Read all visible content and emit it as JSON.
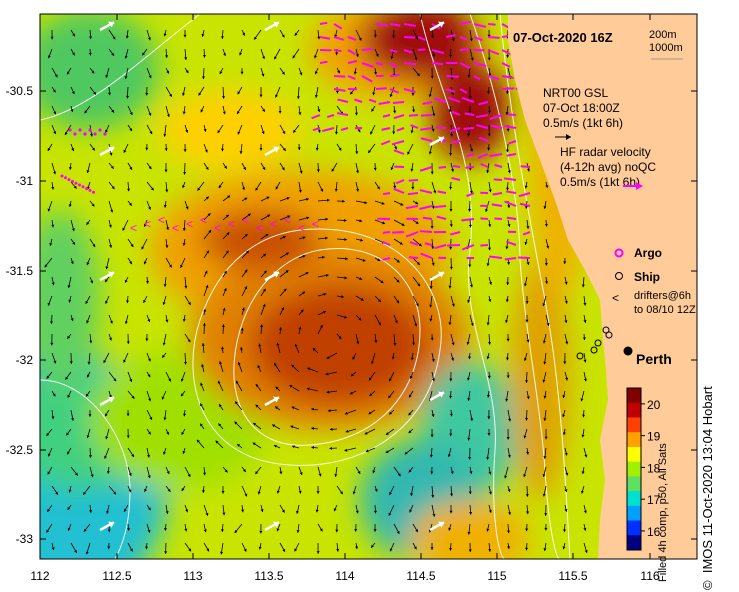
{
  "title": "07-Oct-2020 16Z",
  "scale_legend": {
    "label1": "200m",
    "label2": "1000m"
  },
  "gsl_legend": {
    "line1": "NRT00 GSL",
    "line2": "07-Oct 18:00Z",
    "line3": "0.5m/s (1kt 6h)"
  },
  "hf_legend": {
    "line1": "HF radar velocity",
    "line2": "(4-12h avg) noQC",
    "line3": "0.5m/s (1kt 6h)"
  },
  "markers": {
    "argo": "Argo",
    "ship": "Ship",
    "drifters1": "drifters@6h",
    "drifters2": "to 08/10 12Z"
  },
  "place": {
    "perth": "Perth"
  },
  "credit": "IMOS 11-Oct-2020 13:04 Hobart",
  "colorbar": {
    "title": "Filled 4h comp, p50, All Sats",
    "ticks": [
      "16",
      "17",
      "18",
      "19",
      "20"
    ],
    "range": [
      15.4,
      20.5
    ],
    "colors": [
      "#000080",
      "#0030ff",
      "#00a0ff",
      "#00e0d0",
      "#60e060",
      "#a0f000",
      "#ffff00",
      "#ffa000",
      "#ff4000",
      "#c00000",
      "#800000"
    ]
  },
  "axes": {
    "x_ticks": [
      "112",
      "112.5",
      "113",
      "113.5",
      "114",
      "114.5",
      "115",
      "115.5",
      "116"
    ],
    "y_ticks": [
      "-30.5",
      "-31",
      "-31.5",
      "-32",
      "-32.5",
      "-33"
    ]
  },
  "copyright_symbol": "©",
  "colors": {
    "land": "#ffcc99",
    "gsl_arrow": "#000000",
    "hf_arrow": "#ff00ff",
    "drifter": "#ff00ff",
    "isobath": "#ffffff"
  }
}
